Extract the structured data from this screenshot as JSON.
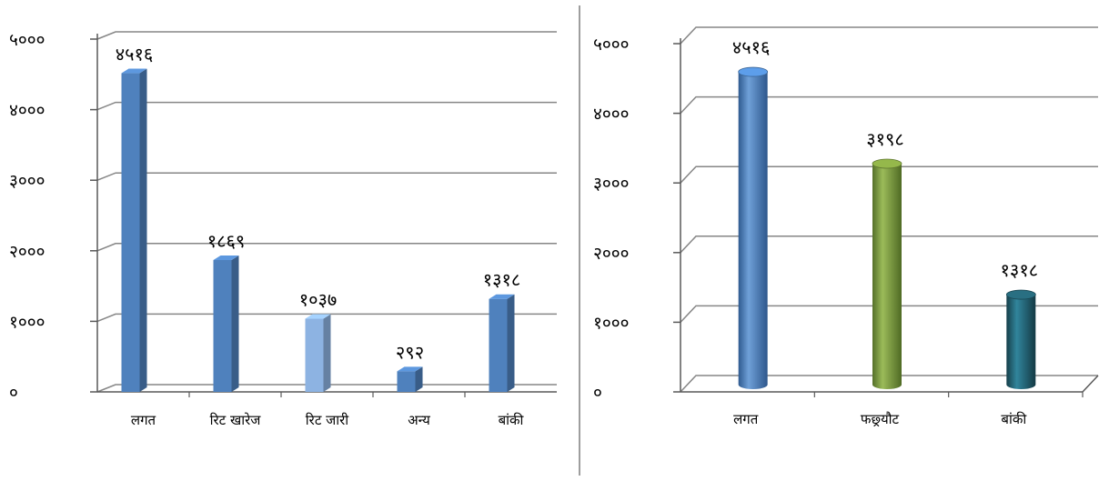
{
  "chart_data": [
    {
      "type": "bar",
      "categories": [
        "लगत",
        "रिट खारेज",
        "रिट जारी",
        "अन्य",
        "बांकी"
      ],
      "values": [
        4516,
        1869,
        1037,
        292,
        1318
      ],
      "value_labels": [
        "४५१६",
        "१८६९",
        "१०३७",
        "२९२",
        "१३१८"
      ],
      "yticks": [
        "०",
        "१०००",
        "२०००",
        "३०००",
        "४०००",
        "५०००"
      ],
      "ylim": [
        0,
        5000
      ],
      "grid": true,
      "bar_colors": [
        "#4f81bd",
        "#4f81bd",
        "#8db3e2",
        "#4f81bd",
        "#4f81bd"
      ],
      "style": "3d-bar"
    },
    {
      "type": "bar",
      "categories": [
        "लगत",
        "फछ्र्यौट",
        "बांकी"
      ],
      "values": [
        4516,
        3198,
        1318
      ],
      "value_labels": [
        "४५१६",
        "३१९८",
        "१३१८"
      ],
      "yticks": [
        "०",
        "१०००",
        "२०००",
        "३०००",
        "४०००",
        "५०००"
      ],
      "ylim": [
        0,
        5000
      ],
      "grid": true,
      "bar_colors": [
        "#4a7ebb",
        "#77933c",
        "#215968"
      ],
      "style": "3d-cylinder"
    }
  ]
}
